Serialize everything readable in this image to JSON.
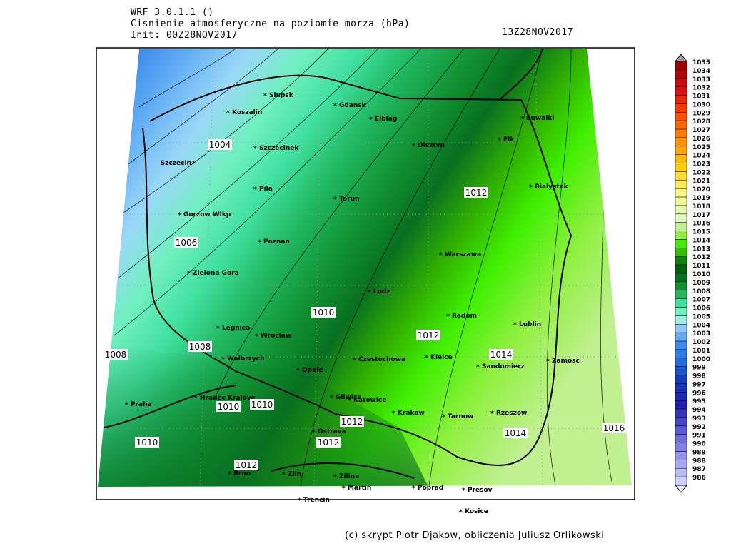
{
  "header": {
    "model": "WRF 3.0.1.1 ()",
    "title": "Cisnienie atmosferyczne na poziomie morza (hPa)",
    "init": "Init: 00Z28NOV2017",
    "valid": "13Z28NOV2017"
  },
  "cities": [
    "Slupsk",
    "Gdansk",
    "Koszalin",
    "Elblag",
    "Suwalki",
    "Elk",
    "Olsztyn",
    "Szczecinek",
    "Szczecin",
    "Bialystok",
    "Pila",
    "Torun",
    "Gorzow Wlkp",
    "Poznan",
    "Warszawa",
    "Zielona Gora",
    "Lodz",
    "Radom",
    "Lublin",
    "Legnica",
    "Wroclaw",
    "Kielce",
    "Walbrzych",
    "Czestochowa",
    "Zamosc",
    "Sandomierz",
    "Opole",
    "Hradec Kralove",
    "Gliwice",
    "Katowice",
    "Praha",
    "Krakow",
    "Tarnow",
    "Rzeszow",
    "Ostrava",
    "Brno",
    "Zlin",
    "Zilina",
    "Martin",
    "Poprad",
    "Presov",
    "Trencin",
    "Kosice"
  ],
  "contour_labels": [
    1004,
    1006,
    1008,
    1008,
    1010,
    1010,
    1010,
    1010,
    1012,
    1012,
    1012,
    1012,
    1012,
    1014,
    1014,
    1016
  ],
  "colorbar": {
    "levels": [
      1035,
      1034,
      1033,
      1032,
      1031,
      1030,
      1029,
      1028,
      1027,
      1026,
      1025,
      1024,
      1023,
      1022,
      1021,
      1020,
      1019,
      1018,
      1017,
      1016,
      1015,
      1014,
      1013,
      1012,
      1011,
      1010,
      1009,
      1008,
      1007,
      1006,
      1005,
      1004,
      1003,
      1002,
      1001,
      1000,
      999,
      998,
      997,
      996,
      995,
      994,
      993,
      992,
      991,
      990,
      989,
      988,
      987,
      986
    ]
  },
  "footer": "(c) skrypt Piotr Djakow, obliczenia Juliusz Orlikowski"
}
